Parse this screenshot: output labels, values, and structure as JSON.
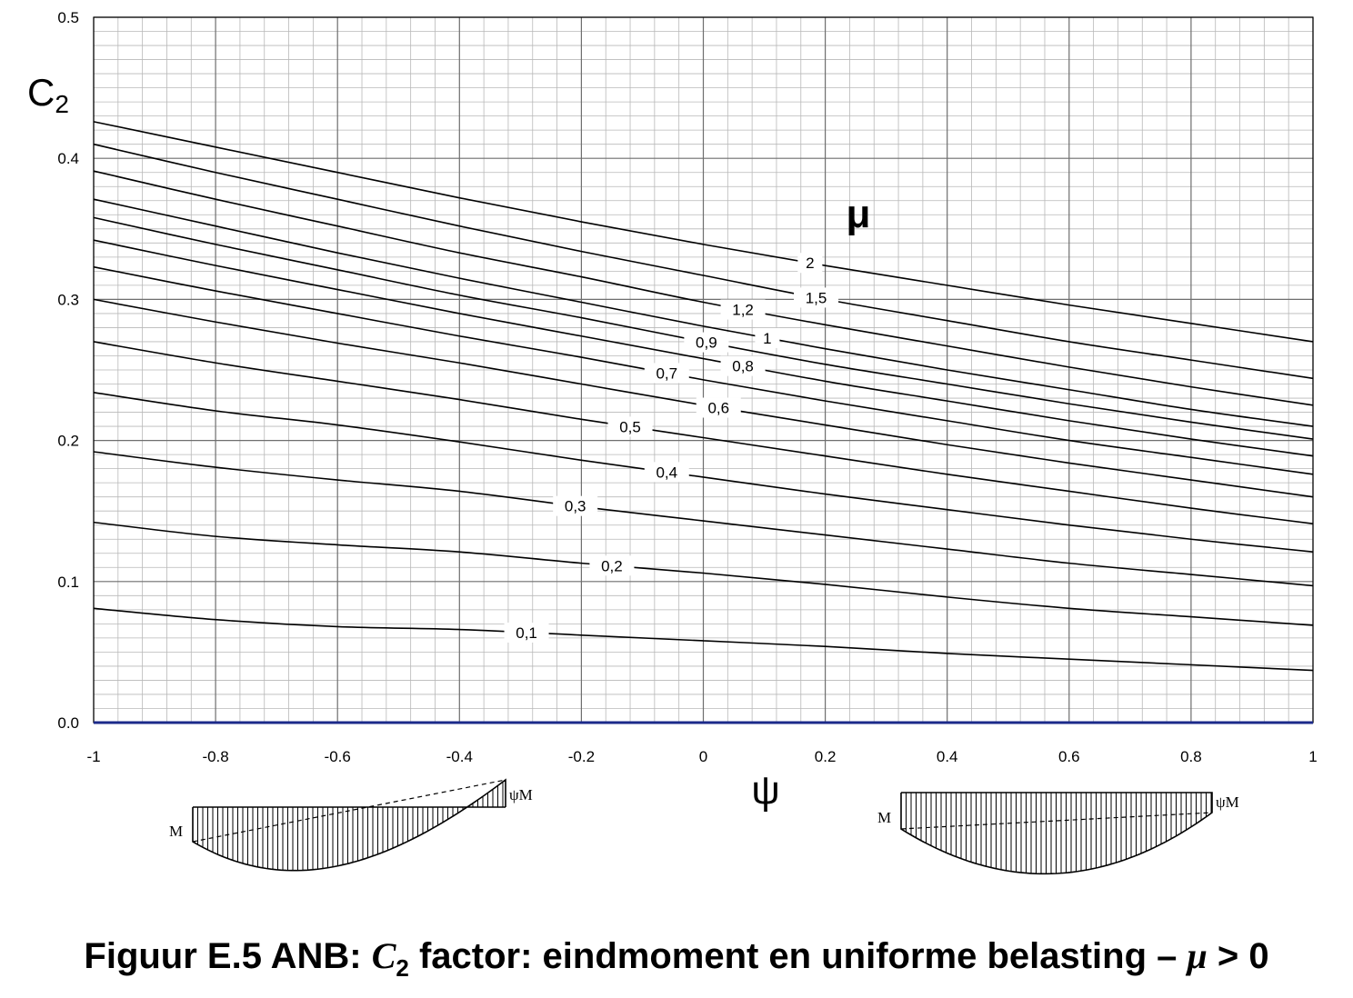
{
  "chart_data": {
    "type": "line",
    "xlim": [
      -1,
      1
    ],
    "ylim": [
      0,
      0.5
    ],
    "xticks": [
      "-1",
      "-0.8",
      "-0.6",
      "-0.4",
      "-0.2",
      "0",
      "0.2",
      "0.4",
      "0.6",
      "0.8",
      "1"
    ],
    "yticks": [
      "0.0",
      "0.1",
      "0.2",
      "0.3",
      "0.4",
      "0.5"
    ],
    "ylabel_main": "C",
    "ylabel_sub": "2",
    "xlabel": "ψ",
    "legend_title": "μ",
    "grid": true,
    "x": [
      -1,
      -0.8,
      -0.6,
      -0.4,
      -0.2,
      0,
      0.2,
      0.4,
      0.6,
      0.8,
      1
    ],
    "series": [
      {
        "name": "0,1",
        "label_x": -0.29,
        "values": [
          0.081,
          0.073,
          0.068,
          0.066,
          0.062,
          0.058,
          0.054,
          0.049,
          0.045,
          0.041,
          0.037
        ]
      },
      {
        "name": "0,2",
        "label_x": -0.15,
        "values": [
          0.142,
          0.132,
          0.126,
          0.121,
          0.113,
          0.106,
          0.098,
          0.089,
          0.081,
          0.075,
          0.069
        ]
      },
      {
        "name": "0,3",
        "label_x": -0.21,
        "values": [
          0.192,
          0.181,
          0.172,
          0.164,
          0.153,
          0.143,
          0.133,
          0.123,
          0.113,
          0.105,
          0.097
        ]
      },
      {
        "name": "0,4",
        "label_x": -0.06,
        "values": [
          0.234,
          0.221,
          0.211,
          0.199,
          0.186,
          0.174,
          0.162,
          0.151,
          0.14,
          0.13,
          0.121
        ]
      },
      {
        "name": "0,5",
        "label_x": -0.12,
        "values": [
          0.27,
          0.255,
          0.242,
          0.229,
          0.215,
          0.202,
          0.189,
          0.176,
          0.164,
          0.152,
          0.141
        ]
      },
      {
        "name": "0,6",
        "label_x": 0.025,
        "values": [
          0.3,
          0.284,
          0.269,
          0.255,
          0.24,
          0.225,
          0.211,
          0.197,
          0.184,
          0.172,
          0.16
        ]
      },
      {
        "name": "0,7",
        "label_x": -0.06,
        "values": [
          0.323,
          0.306,
          0.29,
          0.274,
          0.259,
          0.243,
          0.228,
          0.214,
          0.2,
          0.188,
          0.176
        ]
      },
      {
        "name": "0,8",
        "label_x": 0.065,
        "values": [
          0.342,
          0.324,
          0.307,
          0.29,
          0.274,
          0.258,
          0.242,
          0.228,
          0.214,
          0.201,
          0.189
        ]
      },
      {
        "name": "0,9",
        "label_x": 0.005,
        "values": [
          0.358,
          0.339,
          0.321,
          0.303,
          0.287,
          0.27,
          0.254,
          0.24,
          0.226,
          0.213,
          0.201
        ]
      },
      {
        "name": "1",
        "label_x": 0.105,
        "values": [
          0.371,
          0.352,
          0.333,
          0.315,
          0.298,
          0.281,
          0.265,
          0.25,
          0.236,
          0.222,
          0.21
        ]
      },
      {
        "name": "1,2",
        "label_x": 0.065,
        "values": [
          0.391,
          0.371,
          0.352,
          0.333,
          0.316,
          0.298,
          0.282,
          0.267,
          0.252,
          0.238,
          0.225
        ]
      },
      {
        "name": "1,5",
        "label_x": 0.185,
        "values": [
          0.41,
          0.39,
          0.371,
          0.352,
          0.334,
          0.317,
          0.3,
          0.285,
          0.27,
          0.257,
          0.244
        ]
      },
      {
        "name": "2",
        "label_x": 0.175,
        "values": [
          0.426,
          0.408,
          0.39,
          0.372,
          0.355,
          0.339,
          0.324,
          0.31,
          0.296,
          0.283,
          0.27
        ]
      }
    ]
  },
  "diagrams": {
    "left": {
      "label_left": "M",
      "label_right": "ψM"
    },
    "right": {
      "label_left": "M",
      "label_right": "ψM"
    }
  },
  "caption": {
    "prefix": "Figuur E.5 ANB: ",
    "symbol": "C",
    "symbol_sub": "2",
    "middle": " factor: eindmoment en uniforme belasting – ",
    "mu": "μ",
    "suffix": " > 0"
  }
}
